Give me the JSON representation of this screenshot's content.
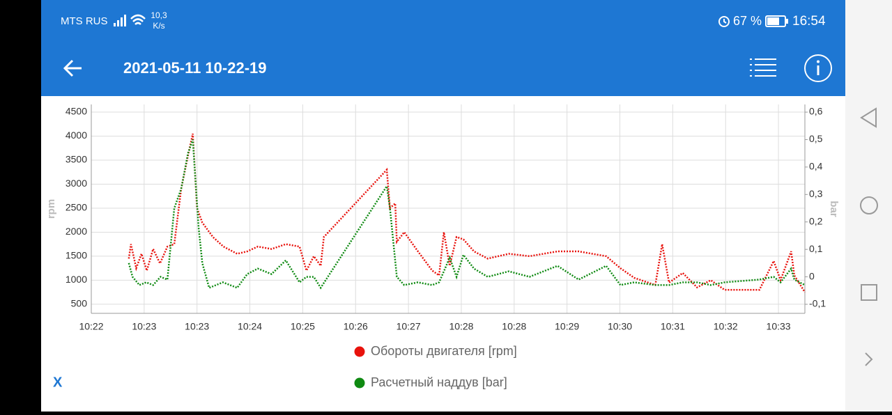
{
  "status_bar": {
    "carrier": "MTS RUS",
    "speed": "10,3",
    "speed_unit": "K/s",
    "battery": "67 %",
    "time": "16:54"
  },
  "app_bar": {
    "title": "2021-05-11 10-22-19"
  },
  "chart_data": {
    "type": "line",
    "ylabel": "rpm",
    "y2label": "bar",
    "grid": true,
    "xlim": [
      0,
      13.5
    ],
    "xticks": [
      {
        "value": 0,
        "label": "10:22"
      },
      {
        "value": 1,
        "label": "10:23"
      },
      {
        "value": 2,
        "label": "10:23"
      },
      {
        "value": 3,
        "label": "10:24"
      },
      {
        "value": 4,
        "label": "10:25"
      },
      {
        "value": 5,
        "label": "10:26"
      },
      {
        "value": 6,
        "label": "10:27"
      },
      {
        "value": 7,
        "label": "10:28"
      },
      {
        "value": 8,
        "label": "10:28"
      },
      {
        "value": 9,
        "label": "10:29"
      },
      {
        "value": 10,
        "label": "10:30"
      },
      {
        "value": 11,
        "label": "10:31"
      },
      {
        "value": 12,
        "label": "10:32"
      },
      {
        "value": 13,
        "label": "10:33"
      }
    ],
    "ylim": [
      310,
      4660
    ],
    "yticks": [
      500,
      1000,
      1500,
      2000,
      2500,
      3000,
      3500,
      4000,
      4500
    ],
    "y2lim": [
      -0.133,
      0.628
    ],
    "y2ticks": [
      {
        "value": -0.1,
        "label": "-0,1"
      },
      0,
      {
        "value": 0.1,
        "label": "0,1"
      },
      {
        "value": 0.2,
        "label": "0,2"
      },
      {
        "value": 0.3,
        "label": "0,3"
      },
      {
        "value": 0.4,
        "label": "0,4"
      },
      {
        "value": 0.5,
        "label": "0,5"
      },
      {
        "value": 0.6,
        "label": "0,6"
      }
    ],
    "series": [
      {
        "name": "Обороты двигателя [rpm]",
        "color": "#e8120c",
        "x": [
          0.71,
          0.75,
          0.85,
          0.95,
          1.05,
          1.17,
          1.3,
          1.44,
          1.57,
          1.7,
          1.83,
          1.92,
          2.0,
          2.1,
          2.3,
          2.5,
          2.76,
          2.95,
          3.15,
          3.41,
          3.68,
          3.94,
          4.07,
          4.21,
          4.34,
          4.4,
          5.59,
          5.65,
          5.75,
          5.78,
          5.92,
          6.18,
          6.45,
          6.58,
          6.67,
          6.78,
          6.91,
          7.04,
          7.24,
          7.5,
          7.9,
          8.29,
          8.82,
          9.22,
          9.74,
          10.01,
          10.27,
          10.67,
          10.8,
          10.93,
          11.19,
          11.46,
          11.72,
          11.98,
          12.64,
          12.91,
          13.04,
          13.24,
          13.3,
          13.5
        ],
        "values": [
          1450,
          1750,
          1250,
          1550,
          1200,
          1650,
          1350,
          1700,
          1750,
          2900,
          3600,
          4050,
          2500,
          2200,
          1900,
          1700,
          1550,
          1600,
          1700,
          1650,
          1750,
          1700,
          1200,
          1500,
          1300,
          1900,
          3300,
          2500,
          2600,
          1800,
          2000,
          1600,
          1200,
          1100,
          2000,
          1300,
          1900,
          1850,
          1600,
          1450,
          1550,
          1500,
          1600,
          1600,
          1500,
          1250,
          1050,
          900,
          1750,
          950,
          1150,
          850,
          1000,
          800,
          800,
          1400,
          1000,
          1600,
          1100,
          750
        ]
      },
      {
        "name": "Расчетный наддув [bar]",
        "color": "#0f8a12",
        "axis": "y2",
        "x": [
          0.71,
          0.78,
          0.91,
          1.04,
          1.17,
          1.31,
          1.44,
          1.57,
          1.7,
          1.83,
          1.92,
          2.03,
          2.1,
          2.23,
          2.49,
          2.76,
          2.95,
          3.15,
          3.41,
          3.68,
          3.94,
          4.07,
          4.21,
          4.34,
          5.59,
          5.65,
          5.78,
          5.92,
          6.18,
          6.45,
          6.58,
          6.67,
          6.78,
          6.91,
          7.04,
          7.24,
          7.5,
          7.9,
          8.29,
          8.82,
          9.22,
          9.74,
          10.01,
          10.27,
          10.67,
          10.93,
          11.19,
          11.46,
          11.72,
          11.98,
          12.64,
          12.91,
          13.04,
          13.24,
          13.3,
          13.5
        ],
        "values": [
          0.05,
          0.0,
          -0.03,
          -0.02,
          -0.03,
          0.0,
          -0.01,
          0.25,
          0.32,
          0.45,
          0.5,
          0.18,
          0.05,
          -0.04,
          -0.02,
          -0.04,
          0.01,
          0.03,
          0.01,
          0.06,
          -0.02,
          0.0,
          0.0,
          -0.04,
          0.33,
          0.25,
          0.0,
          -0.03,
          -0.02,
          -0.03,
          -0.02,
          0.02,
          0.07,
          0.0,
          0.08,
          0.03,
          0.0,
          0.02,
          0.0,
          0.04,
          -0.01,
          0.04,
          -0.03,
          -0.02,
          -0.03,
          -0.03,
          -0.02,
          -0.02,
          -0.03,
          -0.02,
          -0.01,
          0.0,
          -0.02,
          0.03,
          -0.01,
          -0.03
        ]
      }
    ]
  },
  "x_button": "X"
}
